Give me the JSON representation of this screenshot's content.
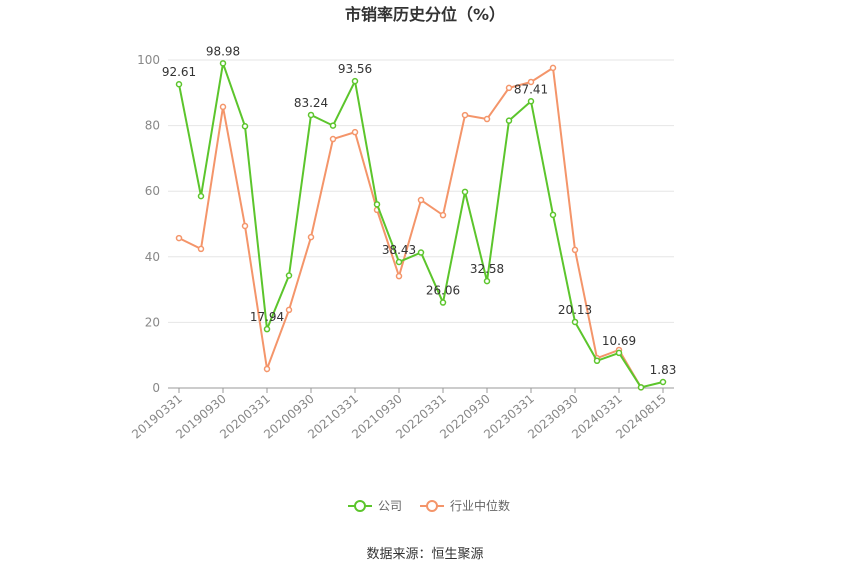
{
  "chart_data": {
    "type": "line",
    "title": "市销率历史分位（%）",
    "categories": [
      "20190331",
      null,
      "20190930",
      null,
      "20200331",
      null,
      "20200930",
      null,
      "20210331",
      null,
      "20210930",
      null,
      "20220331",
      null,
      "20220930",
      null,
      "20230331",
      null,
      "20230930",
      null,
      "20240331",
      null,
      "20240815"
    ],
    "series": [
      {
        "name": "公司",
        "color": "#5cc52c",
        "values": [
          92.61,
          58.5,
          98.98,
          79.8,
          17.94,
          34.3,
          83.24,
          80.0,
          93.56,
          56.0,
          38.43,
          41.3,
          26.06,
          59.8,
          32.58,
          81.5,
          87.41,
          52.8,
          20.13,
          8.3,
          10.69,
          0.2,
          1.83
        ],
        "value_labels": [
          "92.61",
          null,
          "98.98",
          null,
          "17.94",
          null,
          "83.24",
          null,
          "93.56",
          null,
          "38.43",
          null,
          "26.06",
          null,
          "32.58",
          null,
          "87.41",
          null,
          "20.13",
          null,
          "10.69",
          null,
          "1.83"
        ]
      },
      {
        "name": "行业中位数",
        "color": "#f4956a",
        "values": [
          45.7,
          42.4,
          85.7,
          49.4,
          5.8,
          23.8,
          46.0,
          75.9,
          78.0,
          54.3,
          34.1,
          57.3,
          52.7,
          83.2,
          82.0,
          91.5,
          93.3,
          97.6,
          42.1,
          9.1,
          11.6,
          0.2,
          null
        ]
      }
    ],
    "ylim": [
      0,
      100
    ],
    "yticks": [
      0,
      20,
      40,
      60,
      80,
      100
    ],
    "grid": true,
    "legend": "bottom",
    "source": "数据来源：恒生聚源"
  }
}
